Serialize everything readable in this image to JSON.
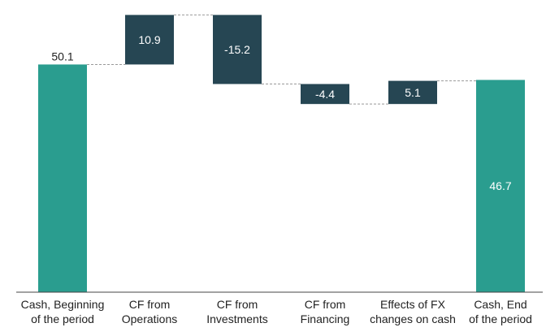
{
  "chart_data": {
    "type": "waterfall",
    "title": "",
    "xlabel": "",
    "ylabel": "",
    "ylim": [
      0,
      56
    ],
    "grid": false,
    "legend": "none",
    "categories": [
      [
        "Cash, Beginning",
        "of the period"
      ],
      [
        "CF from",
        "Operations"
      ],
      [
        "CF from",
        "Investments"
      ],
      [
        "CF from",
        "Financing"
      ],
      [
        "Effects of FX",
        "changes on cash"
      ],
      [
        "Cash, End",
        "of the period"
      ]
    ],
    "values": [
      50.1,
      10.9,
      -15.2,
      -4.4,
      5.1,
      46.7
    ],
    "labels": [
      "50.1",
      "10.9",
      "-15.2",
      "-4.4",
      "5.1",
      "46.7"
    ],
    "kinds": [
      "total",
      "delta",
      "delta",
      "delta",
      "delta",
      "total"
    ]
  },
  "colors": {
    "total": "#2a9d8f",
    "delta": "#264653",
    "connector": "#999999",
    "baseline": "#444444",
    "label_on_dark": "#ffffff",
    "label_outside": "#222222"
  }
}
